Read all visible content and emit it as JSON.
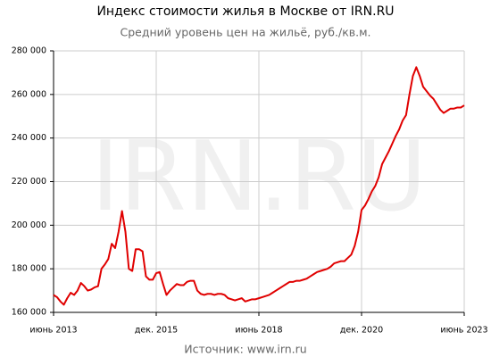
{
  "chart_data": {
    "type": "line",
    "title": "Индекс стоимости жилья в Москве от IRN.RU",
    "subtitle": "Средний уровень цен на жильё, руб./кв.м.",
    "watermark": "IRN.RU",
    "source": "Источник: www.irn.ru",
    "x": [
      "2013-06",
      "2013-07",
      "2013-08",
      "2013-09",
      "2013-10",
      "2013-11",
      "2013-12",
      "2014-01",
      "2014-02",
      "2014-03",
      "2014-04",
      "2014-05",
      "2014-06",
      "2014-07",
      "2014-08",
      "2014-09",
      "2014-10",
      "2014-11",
      "2014-12",
      "2015-01",
      "2015-02",
      "2015-03",
      "2015-04",
      "2015-05",
      "2015-06",
      "2015-07",
      "2015-08",
      "2015-09",
      "2015-10",
      "2015-11",
      "2015-12",
      "2016-01",
      "2016-02",
      "2016-03",
      "2016-04",
      "2016-05",
      "2016-06",
      "2016-07",
      "2016-08",
      "2016-09",
      "2016-10",
      "2016-11",
      "2016-12",
      "2017-01",
      "2017-02",
      "2017-03",
      "2017-04",
      "2017-05",
      "2017-06",
      "2017-07",
      "2017-08",
      "2017-09",
      "2017-10",
      "2017-11",
      "2017-12",
      "2018-01",
      "2018-02",
      "2018-03",
      "2018-04",
      "2018-05",
      "2018-06",
      "2018-07",
      "2018-08",
      "2018-09",
      "2018-10",
      "2018-11",
      "2018-12",
      "2019-01",
      "2019-02",
      "2019-03",
      "2019-04",
      "2019-05",
      "2019-06",
      "2019-07",
      "2019-08",
      "2019-09",
      "2019-10",
      "2019-11",
      "2019-12",
      "2020-01",
      "2020-02",
      "2020-03",
      "2020-04",
      "2020-05",
      "2020-06",
      "2020-07",
      "2020-08",
      "2020-09",
      "2020-10",
      "2020-11",
      "2020-12",
      "2021-01",
      "2021-02",
      "2021-03",
      "2021-04",
      "2021-05",
      "2021-06",
      "2021-07",
      "2021-08",
      "2021-09",
      "2021-10",
      "2021-11",
      "2021-12",
      "2022-01",
      "2022-02",
      "2022-03",
      "2022-04",
      "2022-05",
      "2022-06",
      "2022-07",
      "2022-08",
      "2022-09",
      "2022-10",
      "2022-11",
      "2022-12",
      "2023-01",
      "2023-02",
      "2023-03",
      "2023-04",
      "2023-05",
      "2023-06"
    ],
    "series": [
      {
        "color": "#e00000",
        "values": [
          168000,
          167000,
          165000,
          163500,
          166500,
          169000,
          168000,
          170000,
          173500,
          172000,
          170000,
          170500,
          171500,
          172000,
          180000,
          182000,
          184500,
          191500,
          189500,
          197000,
          206500,
          197000,
          180000,
          179000,
          189000,
          189000,
          188000,
          176500,
          175000,
          175000,
          178000,
          178500,
          173000,
          168000,
          170000,
          171500,
          173000,
          172500,
          172500,
          174000,
          174500,
          174500,
          170000,
          168500,
          168000,
          168500,
          168500,
          168000,
          168500,
          168500,
          168000,
          166500,
          166000,
          165500,
          166000,
          166500,
          165000,
          165500,
          166000,
          166000,
          166500,
          167000,
          167500,
          168000,
          169000,
          170000,
          171000,
          172000,
          173000,
          174000,
          174000,
          174500,
          174500,
          175000,
          175500,
          176500,
          177500,
          178500,
          179000,
          179500,
          180000,
          181000,
          182500,
          183000,
          183500,
          183500,
          185000,
          186500,
          190500,
          197000,
          207000,
          209000,
          212000,
          215500,
          218000,
          222000,
          228000,
          231000,
          234000,
          237500,
          241000,
          244000,
          248000,
          250500,
          260000,
          268500,
          272500,
          268500,
          263500,
          261500,
          259500,
          258000,
          255500,
          253000,
          251500,
          252500,
          253500,
          253500,
          254000,
          254000,
          255000
        ]
      }
    ],
    "xlim": [
      "2013-06",
      "2023-06"
    ],
    "xticks": [
      {
        "value": "2013-06",
        "label": "июнь 2013"
      },
      {
        "value": "2015-12",
        "label": "дек. 2015"
      },
      {
        "value": "2018-06",
        "label": "июнь 2018"
      },
      {
        "value": "2020-12",
        "label": "дек. 2020"
      },
      {
        "value": "2023-06",
        "label": "июнь 2023"
      }
    ],
    "ylim": [
      160000,
      280000
    ],
    "yticks": [
      {
        "value": 160000,
        "label": "160 000"
      },
      {
        "value": 180000,
        "label": "180 000"
      },
      {
        "value": 200000,
        "label": "200 000"
      },
      {
        "value": 220000,
        "label": "220 000"
      },
      {
        "value": 240000,
        "label": "240 000"
      },
      {
        "value": 260000,
        "label": "260 000"
      },
      {
        "value": 280000,
        "label": "280 000"
      }
    ],
    "grid": true
  }
}
